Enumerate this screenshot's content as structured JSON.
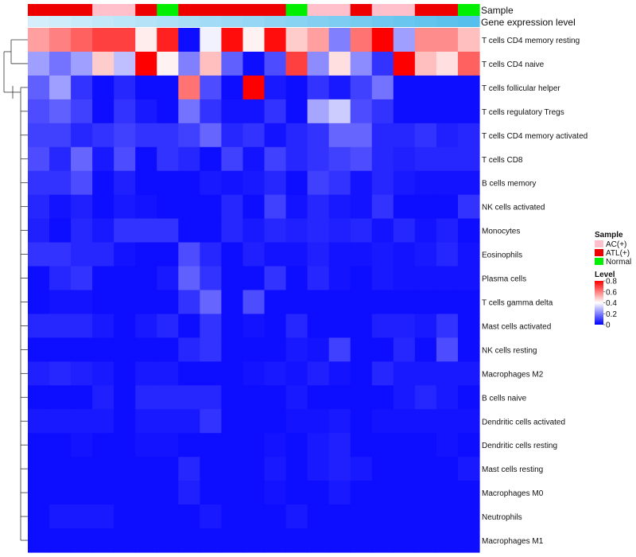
{
  "chart_data": {
    "type": "heatmap",
    "title": "",
    "annotation_labels": {
      "sample": "Sample",
      "expression": "Gene expression level"
    },
    "sample_groups": [
      "ATL(+)",
      "ATL(+)",
      "ATL(+)",
      "AC(+)",
      "AC(+)",
      "ATL(+)",
      "Normal",
      "ATL(+)",
      "ATL(+)",
      "ATL(+)",
      "ATL(+)",
      "ATL(+)",
      "Normal",
      "AC(+)",
      "AC(+)",
      "ATL(+)",
      "AC(+)",
      "AC(+)",
      "ATL(+)",
      "ATL(+)",
      "Normal"
    ],
    "expression_level_annotation": [
      0.0,
      0.05,
      0.1,
      0.15,
      0.2,
      0.25,
      0.3,
      0.35,
      0.4,
      0.45,
      0.5,
      0.55,
      0.6,
      0.65,
      0.7,
      0.75,
      0.8,
      0.85,
      0.9,
      0.95,
      1.0
    ],
    "rows": [
      "T cells CD4 memory resting",
      "T cells CD4 naive",
      "T cells follicular helper",
      "T cells regulatory  Tregs",
      "T cells CD4 memory activated",
      "T cells CD8",
      "B cells memory",
      "NK cells activated",
      "Monocytes",
      "Eosinophils",
      "Plasma cells",
      "T cells gamma delta",
      "Mast cells activated",
      "NK cells resting",
      "Macrophages M2",
      "B cells naive",
      "Dendritic cells activated",
      "Dendritic cells resting",
      "Mast cells resting",
      "Macrophages M0",
      "Neutrophils",
      "Macrophages M1"
    ],
    "values": [
      [
        0.55,
        0.6,
        0.65,
        0.7,
        0.7,
        0.43,
        0.75,
        0.02,
        0.38,
        0.78,
        0.42,
        0.78,
        0.48,
        0.55,
        0.2,
        0.62,
        0.8,
        0.25,
        0.58,
        0.58,
        0.5
      ],
      [
        0.25,
        0.18,
        0.25,
        0.48,
        0.3,
        0.8,
        0.42,
        0.2,
        0.5,
        0.15,
        0.02,
        0.12,
        0.7,
        0.22,
        0.45,
        0.22,
        0.08,
        0.8,
        0.5,
        0.45,
        0.65
      ],
      [
        0.15,
        0.25,
        0.08,
        0.02,
        0.06,
        0.02,
        0.02,
        0.62,
        0.12,
        0.02,
        0.8,
        0.04,
        0.02,
        0.08,
        0.04,
        0.1,
        0.18,
        0.02,
        0.02,
        0.02,
        0.02
      ],
      [
        0.12,
        0.15,
        0.1,
        0.02,
        0.08,
        0.04,
        0.02,
        0.18,
        0.08,
        0.03,
        0.03,
        0.08,
        0.02,
        0.26,
        0.32,
        0.12,
        0.08,
        0.02,
        0.02,
        0.02,
        0.02
      ],
      [
        0.1,
        0.1,
        0.06,
        0.08,
        0.1,
        0.08,
        0.08,
        0.1,
        0.16,
        0.06,
        0.08,
        0.03,
        0.06,
        0.08,
        0.16,
        0.16,
        0.06,
        0.06,
        0.08,
        0.05,
        0.06
      ],
      [
        0.12,
        0.06,
        0.16,
        0.04,
        0.12,
        0.02,
        0.08,
        0.06,
        0.02,
        0.1,
        0.03,
        0.1,
        0.06,
        0.08,
        0.1,
        0.12,
        0.06,
        0.05,
        0.06,
        0.06,
        0.06
      ],
      [
        0.08,
        0.08,
        0.12,
        0.02,
        0.05,
        0.02,
        0.02,
        0.02,
        0.04,
        0.03,
        0.04,
        0.06,
        0.02,
        0.1,
        0.08,
        0.03,
        0.06,
        0.04,
        0.03,
        0.03,
        0.03
      ],
      [
        0.06,
        0.03,
        0.05,
        0.02,
        0.04,
        0.03,
        0.02,
        0.02,
        0.02,
        0.06,
        0.02,
        0.1,
        0.03,
        0.06,
        0.04,
        0.03,
        0.08,
        0.02,
        0.02,
        0.02,
        0.08
      ],
      [
        0.05,
        0.02,
        0.06,
        0.04,
        0.08,
        0.08,
        0.08,
        0.02,
        0.02,
        0.06,
        0.04,
        0.06,
        0.05,
        0.06,
        0.05,
        0.06,
        0.03,
        0.06,
        0.03,
        0.05,
        0.02
      ],
      [
        0.08,
        0.08,
        0.06,
        0.06,
        0.03,
        0.02,
        0.02,
        0.12,
        0.06,
        0.02,
        0.05,
        0.03,
        0.03,
        0.05,
        0.03,
        0.03,
        0.04,
        0.03,
        0.04,
        0.06,
        0.03
      ],
      [
        0.02,
        0.06,
        0.08,
        0.02,
        0.02,
        0.02,
        0.04,
        0.15,
        0.08,
        0.02,
        0.02,
        0.08,
        0.02,
        0.06,
        0.03,
        0.02,
        0.04,
        0.03,
        0.03,
        0.03,
        0.03
      ],
      [
        0.02,
        0.03,
        0.03,
        0.02,
        0.02,
        0.02,
        0.02,
        0.08,
        0.16,
        0.02,
        0.12,
        0.02,
        0.02,
        0.02,
        0.02,
        0.02,
        0.02,
        0.02,
        0.02,
        0.02,
        0.02
      ],
      [
        0.06,
        0.06,
        0.06,
        0.04,
        0.02,
        0.04,
        0.06,
        0.02,
        0.08,
        0.02,
        0.03,
        0.02,
        0.06,
        0.02,
        0.02,
        0.02,
        0.05,
        0.05,
        0.04,
        0.08,
        0.02
      ],
      [
        0.02,
        0.02,
        0.02,
        0.02,
        0.02,
        0.02,
        0.02,
        0.06,
        0.08,
        0.02,
        0.02,
        0.02,
        0.04,
        0.03,
        0.1,
        0.02,
        0.02,
        0.06,
        0.02,
        0.12,
        0.02
      ],
      [
        0.05,
        0.06,
        0.05,
        0.04,
        0.02,
        0.04,
        0.04,
        0.02,
        0.02,
        0.02,
        0.03,
        0.04,
        0.03,
        0.05,
        0.03,
        0.02,
        0.06,
        0.04,
        0.04,
        0.04,
        0.04
      ],
      [
        0.02,
        0.02,
        0.02,
        0.05,
        0.02,
        0.06,
        0.06,
        0.06,
        0.06,
        0.02,
        0.02,
        0.02,
        0.04,
        0.02,
        0.02,
        0.02,
        0.02,
        0.04,
        0.06,
        0.04,
        0.02
      ],
      [
        0.04,
        0.04,
        0.04,
        0.04,
        0.02,
        0.04,
        0.04,
        0.04,
        0.08,
        0.02,
        0.02,
        0.02,
        0.03,
        0.03,
        0.04,
        0.02,
        0.03,
        0.03,
        0.03,
        0.03,
        0.03
      ],
      [
        0.02,
        0.02,
        0.03,
        0.02,
        0.02,
        0.03,
        0.03,
        0.02,
        0.02,
        0.02,
        0.02,
        0.03,
        0.02,
        0.04,
        0.05,
        0.02,
        0.02,
        0.02,
        0.02,
        0.03,
        0.02
      ],
      [
        0.02,
        0.02,
        0.02,
        0.02,
        0.02,
        0.02,
        0.02,
        0.06,
        0.02,
        0.02,
        0.02,
        0.04,
        0.02,
        0.04,
        0.05,
        0.04,
        0.02,
        0.02,
        0.02,
        0.02,
        0.04
      ],
      [
        0.02,
        0.02,
        0.02,
        0.02,
        0.02,
        0.02,
        0.02,
        0.05,
        0.02,
        0.02,
        0.02,
        0.03,
        0.02,
        0.02,
        0.04,
        0.02,
        0.02,
        0.02,
        0.02,
        0.02,
        0.02
      ],
      [
        0.02,
        0.04,
        0.04,
        0.04,
        0.02,
        0.02,
        0.02,
        0.02,
        0.04,
        0.02,
        0.02,
        0.02,
        0.04,
        0.02,
        0.02,
        0.02,
        0.02,
        0.02,
        0.02,
        0.02,
        0.02
      ],
      [
        0.02,
        0.02,
        0.02,
        0.02,
        0.02,
        0.02,
        0.02,
        0.02,
        0.02,
        0.02,
        0.02,
        0.02,
        0.02,
        0.02,
        0.02,
        0.02,
        0.02,
        0.02,
        0.02,
        0.02,
        0.02
      ]
    ],
    "legend_sample": {
      "title": "Sample",
      "entries": [
        {
          "label": "AC(+)",
          "color": "#ffc0cb"
        },
        {
          "label": "ATL(+)",
          "color": "#ee0000"
        },
        {
          "label": "Normal",
          "color": "#00ee00"
        }
      ]
    },
    "legend_level": {
      "title": "Level",
      "ticks": [
        0.8,
        0.6,
        0.4,
        0.2,
        0
      ],
      "range": [
        0,
        0.8
      ]
    },
    "colors": {
      "low": "#0000ff",
      "mid": "#ffffff",
      "high": "#ff0000",
      "expr_low": "#d4eefb",
      "expr_high": "#56bfec"
    }
  }
}
